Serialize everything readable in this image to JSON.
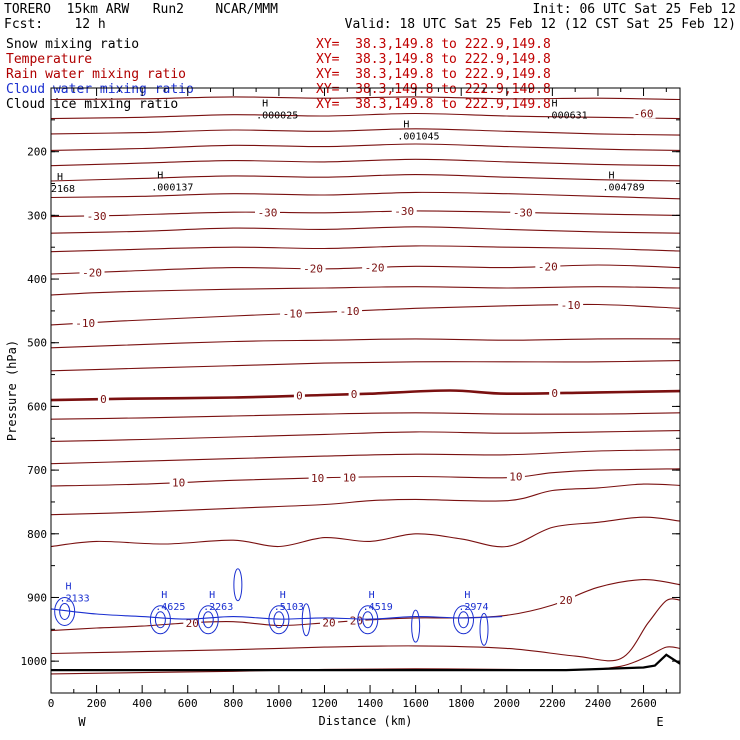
{
  "header": {
    "line1_left": "TORERO  15km ARW   Run2    NCAR/MMM",
    "line1_right": "Init: 06 UTC Sat 25 Feb 12",
    "line2_left": "Fcst:    12 h",
    "line2_right": "Valid: 18 UTC Sat 25 Feb 12 (12 CST Sat 25 Feb 12)"
  },
  "legend": [
    {
      "label": "Snow mixing ratio",
      "xy": "XY=  38.3,149.8 to 222.9,149.8",
      "color": "#000000"
    },
    {
      "label": "Temperature",
      "xy": "XY=  38.3,149.8 to 222.9,149.8",
      "color": "#b00000"
    },
    {
      "label": "Rain water mixing ratio",
      "xy": "XY=  38.3,149.8 to 222.9,149.8",
      "color": "#b00000"
    },
    {
      "label": "Cloud water mixing ratio",
      "xy": "XY=  38.3,149.8 to 222.9,149.8",
      "color": "#1a2fd0"
    },
    {
      "label": "Cloud ice mixing ratio",
      "xy": "XY=  38.3,149.8 to 222.9,149.8",
      "color": "#000000"
    }
  ],
  "chart_data": {
    "type": "line",
    "xlabel": "Distance (km)",
    "ylabel": "Pressure (hPa)",
    "xlim": [
      0,
      2760
    ],
    "ylim": [
      1050,
      100
    ],
    "x_ticks": [
      "0",
      "200",
      "400",
      "600",
      "800",
      "1000",
      "1200",
      "1400",
      "1600",
      "1800",
      "2000",
      "2200",
      "2400",
      "2600"
    ],
    "y_ticks": [
      "200",
      "300",
      "400",
      "500",
      "600",
      "700",
      "800",
      "900",
      "1000"
    ],
    "x_end_labels": {
      "left": "W",
      "right": "E"
    },
    "colors": {
      "temperature": "#7a1010",
      "cloud_water": "#1a2fd0",
      "ground": "#000000"
    },
    "temperature_contours": [
      {
        "points": [
          [
            0,
            118
          ],
          [
            400,
            117
          ],
          [
            800,
            114
          ],
          [
            1200,
            116
          ],
          [
            1600,
            114
          ],
          [
            2000,
            117
          ],
          [
            2400,
            116
          ],
          [
            2760,
            118
          ]
        ]
      },
      {
        "points": [
          [
            0,
            148
          ],
          [
            400,
            146
          ],
          [
            800,
            142
          ],
          [
            1200,
            144
          ],
          [
            1600,
            140
          ],
          [
            2000,
            144
          ],
          [
            2400,
            146
          ],
          [
            2760,
            148
          ]
        ]
      },
      {
        "points": [
          [
            0,
            172
          ],
          [
            400,
            170
          ],
          [
            800,
            166
          ],
          [
            1200,
            168
          ],
          [
            1600,
            164
          ],
          [
            2000,
            168
          ],
          [
            2400,
            172
          ],
          [
            2760,
            174
          ]
        ]
      },
      {
        "points": [
          [
            0,
            198
          ],
          [
            400,
            195
          ],
          [
            800,
            190
          ],
          [
            1200,
            192
          ],
          [
            1600,
            188
          ],
          [
            2000,
            192
          ],
          [
            2400,
            196
          ],
          [
            2760,
            198
          ]
        ]
      },
      {
        "points": [
          [
            0,
            222
          ],
          [
            400,
            218
          ],
          [
            800,
            214
          ],
          [
            1200,
            216
          ],
          [
            1600,
            212
          ],
          [
            2000,
            216
          ],
          [
            2400,
            220
          ],
          [
            2760,
            222
          ]
        ]
      },
      {
        "points": [
          [
            0,
            246
          ],
          [
            400,
            242
          ],
          [
            800,
            238
          ],
          [
            1200,
            240
          ],
          [
            1600,
            236
          ],
          [
            2000,
            240
          ],
          [
            2400,
            244
          ],
          [
            2760,
            246
          ]
        ]
      },
      {
        "points": [
          [
            0,
            272
          ],
          [
            400,
            270
          ],
          [
            800,
            266
          ],
          [
            1200,
            268
          ],
          [
            1600,
            264
          ],
          [
            2000,
            266
          ],
          [
            2400,
            270
          ],
          [
            2760,
            274
          ]
        ]
      },
      {
        "points": [
          [
            0,
            302
          ],
          [
            300,
            300
          ],
          [
            800,
            295
          ],
          [
            1200,
            296
          ],
          [
            1600,
            293
          ],
          [
            2000,
            295
          ],
          [
            2400,
            298
          ],
          [
            2760,
            300
          ]
        ],
        "label": "-30",
        "label_x": [
          200,
          950,
          1550,
          2070
        ]
      },
      {
        "points": [
          [
            0,
            328
          ],
          [
            400,
            325
          ],
          [
            800,
            320
          ],
          [
            1200,
            322
          ],
          [
            1600,
            318
          ],
          [
            2000,
            322
          ],
          [
            2400,
            326
          ],
          [
            2760,
            328
          ]
        ]
      },
      {
        "points": [
          [
            0,
            357
          ],
          [
            300,
            354
          ],
          [
            800,
            350
          ],
          [
            1200,
            352
          ],
          [
            1600,
            348
          ],
          [
            2000,
            350
          ],
          [
            2400,
            352
          ],
          [
            2760,
            356
          ]
        ]
      },
      {
        "points": [
          [
            0,
            392
          ],
          [
            300,
            388
          ],
          [
            800,
            382
          ],
          [
            1200,
            384
          ],
          [
            1600,
            380
          ],
          [
            2000,
            382
          ],
          [
            2400,
            378
          ],
          [
            2760,
            382
          ]
        ],
        "label": "-20",
        "label_x": [
          180,
          1150,
          1420,
          2180
        ]
      },
      {
        "points": [
          [
            0,
            425
          ],
          [
            300,
            420
          ],
          [
            800,
            416
          ],
          [
            1200,
            414
          ],
          [
            1600,
            412
          ],
          [
            2000,
            414
          ],
          [
            2400,
            412
          ],
          [
            2760,
            414
          ]
        ]
      },
      {
        "points": [
          [
            0,
            472
          ],
          [
            300,
            466
          ],
          [
            800,
            458
          ],
          [
            1200,
            452
          ],
          [
            1600,
            446
          ],
          [
            2000,
            442
          ],
          [
            2400,
            440
          ],
          [
            2760,
            446
          ]
        ],
        "label": "-10",
        "label_x": [
          150,
          1060,
          1310,
          2280
        ]
      },
      {
        "points": [
          [
            0,
            508
          ],
          [
            300,
            504
          ],
          [
            800,
            498
          ],
          [
            1200,
            496
          ],
          [
            1600,
            494
          ],
          [
            2000,
            496
          ],
          [
            2400,
            494
          ],
          [
            2760,
            494
          ]
        ]
      },
      {
        "points": [
          [
            0,
            544
          ],
          [
            400,
            540
          ],
          [
            800,
            536
          ],
          [
            1200,
            532
          ],
          [
            1600,
            530
          ],
          [
            2000,
            530
          ],
          [
            2400,
            530
          ],
          [
            2760,
            528
          ]
        ]
      },
      {
        "points": [
          [
            0,
            590
          ],
          [
            300,
            588
          ],
          [
            800,
            586
          ],
          [
            1200,
            582
          ],
          [
            1400,
            580
          ],
          [
            1750,
            575
          ],
          [
            2000,
            580
          ],
          [
            2400,
            578
          ],
          [
            2760,
            576
          ]
        ],
        "label": "0",
        "label_x": [
          230,
          1090,
          1330,
          2210
        ],
        "heavy": true
      },
      {
        "points": [
          [
            0,
            620
          ],
          [
            400,
            618
          ],
          [
            800,
            615
          ],
          [
            1200,
            612
          ],
          [
            1600,
            610
          ],
          [
            2000,
            612
          ],
          [
            2400,
            612
          ],
          [
            2760,
            610
          ]
        ]
      },
      {
        "points": [
          [
            0,
            655
          ],
          [
            400,
            652
          ],
          [
            800,
            648
          ],
          [
            1200,
            644
          ],
          [
            1600,
            640
          ],
          [
            2000,
            642
          ],
          [
            2400,
            640
          ],
          [
            2760,
            638
          ]
        ]
      },
      {
        "points": [
          [
            0,
            690
          ],
          [
            400,
            686
          ],
          [
            800,
            682
          ],
          [
            1200,
            678
          ],
          [
            1600,
            675
          ],
          [
            2000,
            676
          ],
          [
            2400,
            670
          ],
          [
            2760,
            668
          ]
        ]
      },
      {
        "points": [
          [
            0,
            725
          ],
          [
            400,
            722
          ],
          [
            800,
            716
          ],
          [
            1200,
            712
          ],
          [
            1600,
            710
          ],
          [
            2000,
            712
          ],
          [
            2200,
            704
          ],
          [
            2400,
            700
          ],
          [
            2760,
            698
          ]
        ],
        "label": "10",
        "label_x": [
          560,
          1170,
          1310,
          2040
        ]
      },
      {
        "points": [
          [
            0,
            770
          ],
          [
            400,
            766
          ],
          [
            800,
            760
          ],
          [
            1200,
            754
          ],
          [
            1400,
            748
          ],
          [
            1600,
            746
          ],
          [
            2000,
            748
          ],
          [
            2200,
            732
          ],
          [
            2400,
            728
          ],
          [
            2600,
            722
          ],
          [
            2760,
            724
          ]
        ]
      },
      {
        "points": [
          [
            0,
            820
          ],
          [
            200,
            812
          ],
          [
            500,
            816
          ],
          [
            800,
            810
          ],
          [
            1000,
            820
          ],
          [
            1200,
            806
          ],
          [
            1400,
            812
          ],
          [
            1600,
            800
          ],
          [
            1800,
            808
          ],
          [
            2000,
            820
          ],
          [
            2200,
            790
          ],
          [
            2400,
            782
          ],
          [
            2600,
            774
          ],
          [
            2760,
            780
          ]
        ]
      },
      {
        "points": [
          [
            0,
            952
          ],
          [
            200,
            948
          ],
          [
            400,
            945
          ],
          [
            600,
            940
          ],
          [
            800,
            938
          ],
          [
            1000,
            944
          ],
          [
            1200,
            940
          ],
          [
            1400,
            935
          ],
          [
            1600,
            932
          ],
          [
            1800,
            932
          ],
          [
            2000,
            928
          ],
          [
            2200,
            912
          ],
          [
            2400,
            884
          ],
          [
            2600,
            872
          ],
          [
            2760,
            880
          ]
        ],
        "label": "20",
        "label_x": [
          620,
          1220,
          1340,
          2260
        ]
      },
      {
        "points": [
          [
            0,
            988
          ],
          [
            400,
            985
          ],
          [
            800,
            982
          ],
          [
            1200,
            978
          ],
          [
            1600,
            976
          ],
          [
            2000,
            980
          ],
          [
            2300,
            992
          ],
          [
            2500,
            996
          ],
          [
            2620,
            940
          ],
          [
            2700,
            905
          ],
          [
            2760,
            904
          ]
        ]
      },
      {
        "points": [
          [
            0,
            1020
          ],
          [
            400,
            1018
          ],
          [
            800,
            1016
          ],
          [
            1200,
            1013
          ],
          [
            1600,
            1012
          ],
          [
            2000,
            1013
          ],
          [
            2300,
            1014
          ],
          [
            2500,
            1008
          ],
          [
            2620,
            992
          ],
          [
            2700,
            978
          ],
          [
            2760,
            980
          ]
        ]
      }
    ],
    "ground": {
      "points": [
        [
          0,
          1014
        ],
        [
          2260,
          1014
        ],
        [
          2600,
          1010
        ],
        [
          2650,
          1007
        ],
        [
          2700,
          990
        ],
        [
          2760,
          1004
        ]
      ]
    },
    "cloud_water_peaks": [
      {
        "x": 20,
        "p": 922,
        "value": ".2133"
      },
      {
        "x": 440,
        "p": 935,
        "value": ".4625"
      },
      {
        "x": 650,
        "p": 935,
        "value": ".2263"
      },
      {
        "x": 960,
        "p": 935,
        "value": ".5103"
      },
      {
        "x": 1350,
        "p": 935,
        "value": ".4519"
      },
      {
        "x": 1770,
        "p": 935,
        "value": ".2974"
      }
    ],
    "snow_ice_maxima": [
      {
        "x": 900,
        "p": 145,
        "value": ".000025"
      },
      {
        "x": 1520,
        "p": 178,
        "value": ".001045"
      },
      {
        "x": 440,
        "p": 258,
        "value": ".000137"
      },
      {
        "x": 2420,
        "p": 258,
        "value": ".004789"
      },
      {
        "x": 2170,
        "p": 145,
        "value": ".000631"
      },
      {
        "x": 0,
        "p": 260,
        "value": "2168"
      }
    ],
    "temperature_top_labels": [
      "-60"
    ]
  }
}
